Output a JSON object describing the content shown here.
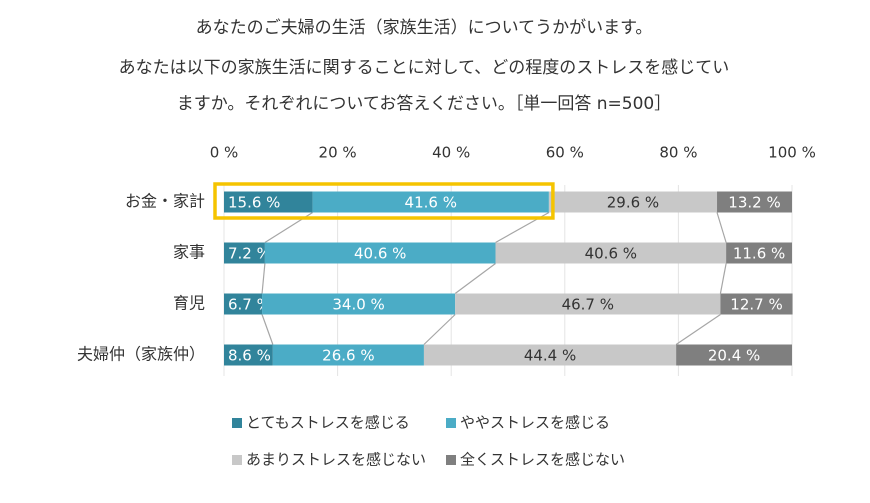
{
  "chart_data": {
    "type": "stacked-bar-horizontal",
    "title": [
      "あなたのご夫婦の生活（家族生活）についてうかがいます。",
      "あなたは以下の家族生活に関することに対して、どの程度のストレスを感じてい",
      "ますか。それぞれについてお答えください。［単一回答 n=500］"
    ],
    "categories": [
      "お金・家計",
      "家事",
      "育児",
      "夫婦仲（家族仲）"
    ],
    "series": [
      {
        "name": "とてもストレスを感じる",
        "color": "#31849b",
        "label_color": "#ffffff",
        "values": [
          15.6,
          7.2,
          6.7,
          8.6
        ],
        "value_labels": [
          "15.6 %",
          "7.2 %",
          "6.7 %",
          "8.6 %"
        ]
      },
      {
        "name": "ややストレスを感じる",
        "color": "#4bacc6",
        "label_color": "#ffffff",
        "values": [
          41.6,
          40.6,
          34.0,
          26.6
        ],
        "value_labels": [
          "41.6 %",
          "40.6 %",
          "34.0 %",
          "26.6 %"
        ]
      },
      {
        "name": "あまりストレスを感じない",
        "color": "#c8c8c8",
        "label_color": "#333333",
        "values": [
          29.6,
          40.6,
          46.7,
          44.4
        ],
        "value_labels": [
          "29.6 %",
          "40.6 %",
          "46.7 %",
          "44.4 %"
        ]
      },
      {
        "name": "全くストレスを感じない",
        "color": "#7f7f7f",
        "label_color": "#ffffff",
        "values": [
          13.2,
          11.6,
          12.7,
          20.4
        ],
        "value_labels": [
          "13.2 %",
          "11.6 %",
          "12.7 %",
          "20.4 %"
        ]
      }
    ],
    "xlim": [
      0,
      100
    ],
    "xticks": [
      {
        "value": 0,
        "label": "0 %"
      },
      {
        "value": 20,
        "label": "20 %"
      },
      {
        "value": 40,
        "label": "40 %"
      },
      {
        "value": 60,
        "label": "60 %"
      },
      {
        "value": 80,
        "label": "80 %"
      },
      {
        "value": 100,
        "label": "100 %"
      }
    ],
    "grid": true
  }
}
